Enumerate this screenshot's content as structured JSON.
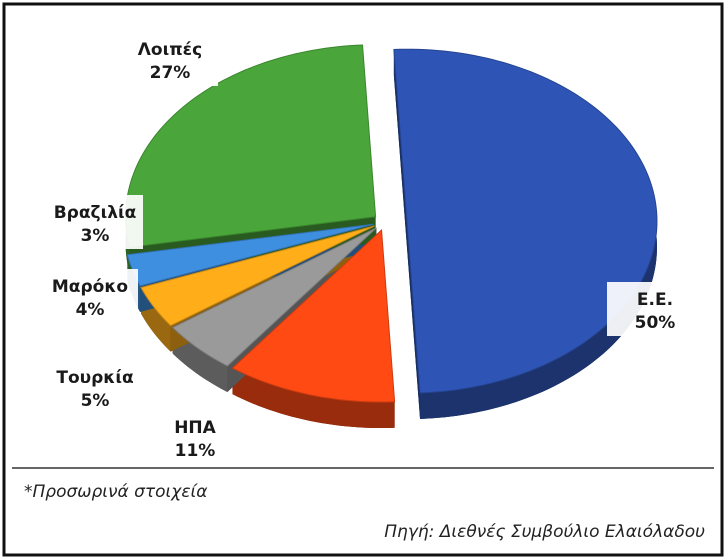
{
  "chart_data": {
    "type": "pie3d",
    "categories": [
      "Ε.Ε.",
      "ΗΠΑ",
      "Τουρκία",
      "Μαρόκο",
      "Βραζιλία",
      "Λοιπές"
    ],
    "values": [
      50,
      11,
      5,
      4,
      3,
      27
    ],
    "value_labels": [
      "50%",
      "11%",
      "5%",
      "4%",
      "3%",
      "27%"
    ],
    "colors": [
      "#2e55b5",
      "#ff4a14",
      "#9a9a9a",
      "#ffae1a",
      "#3f8fe0",
      "#4aa63a"
    ],
    "footnote": "*Προσωρινά στοιχεία",
    "source": "Πηγή: Διεθνές Συμβούλιο Ελαιόλαδου"
  }
}
